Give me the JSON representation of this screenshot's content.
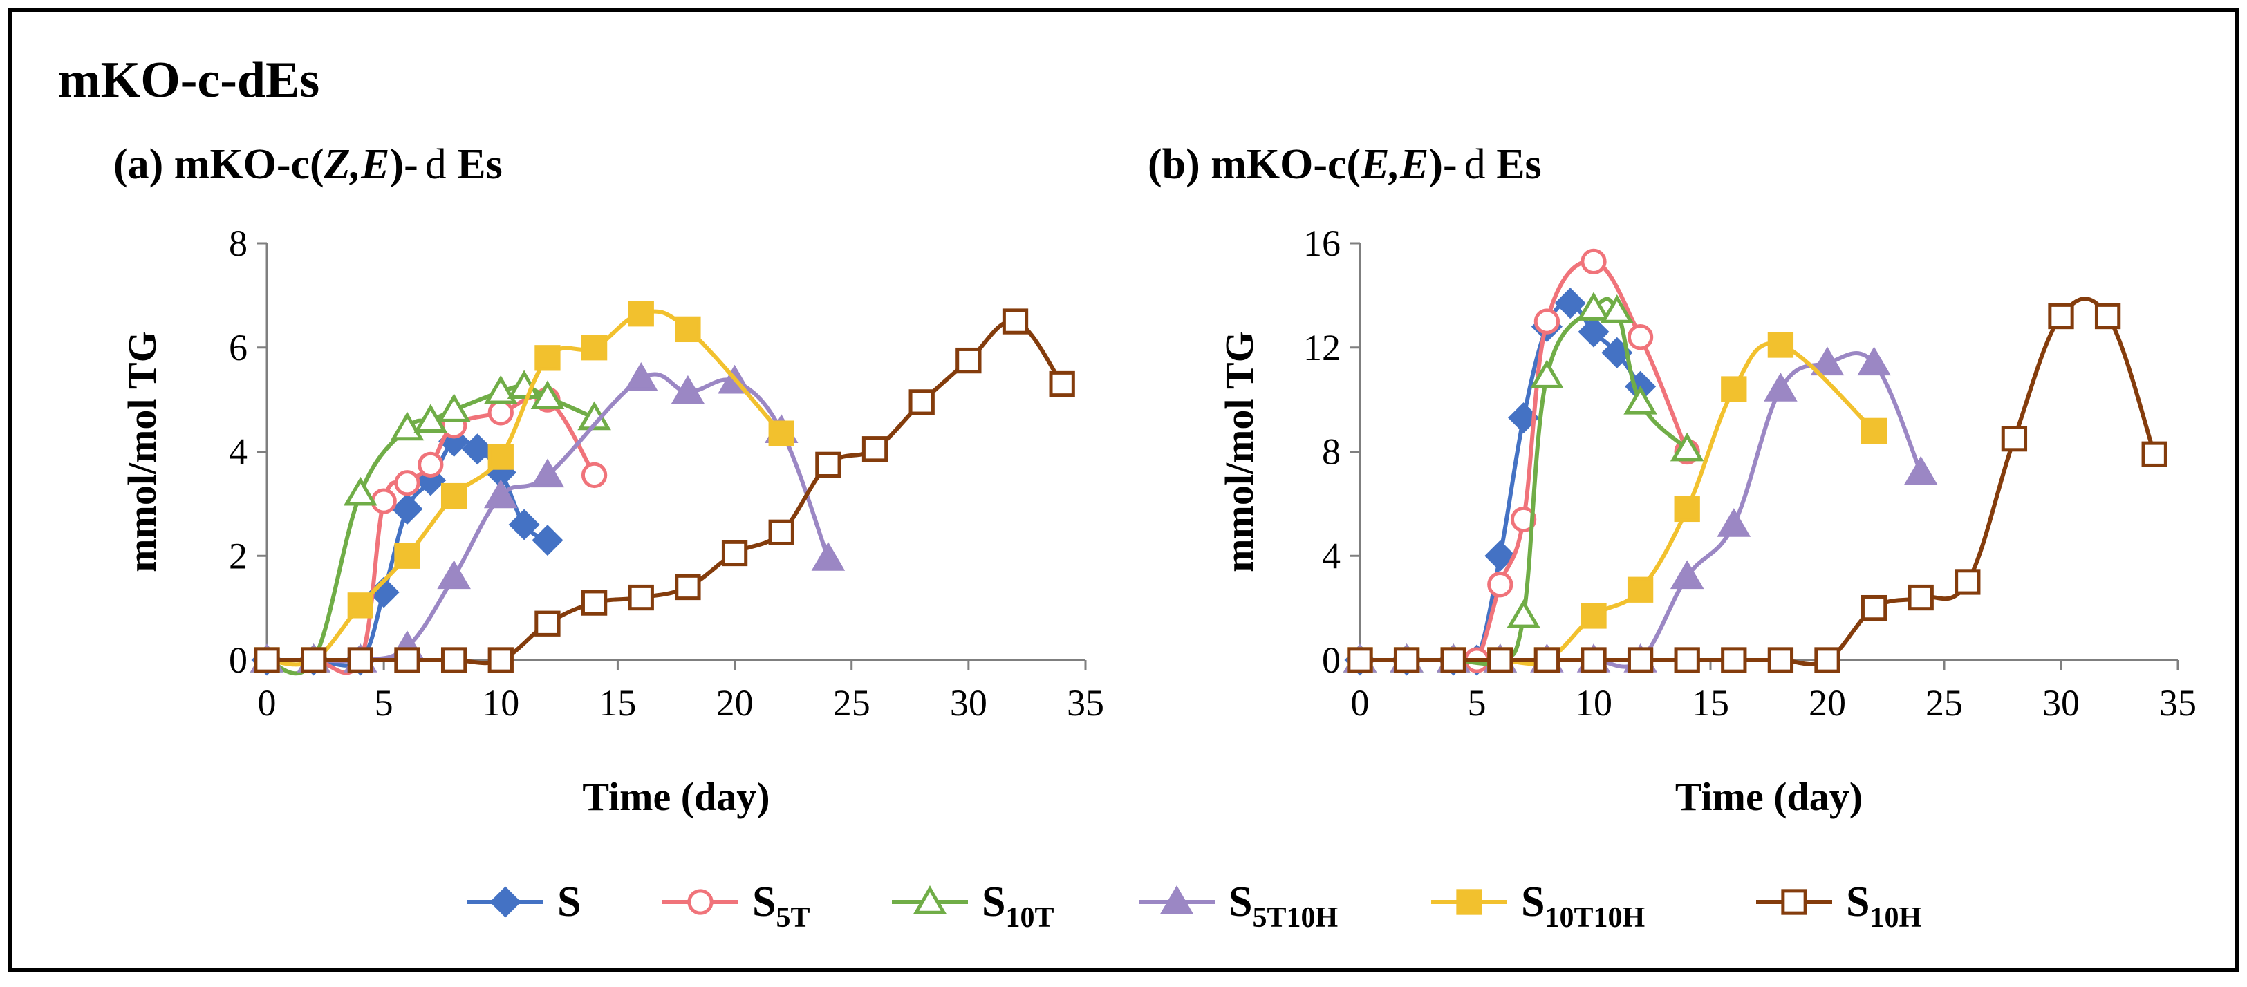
{
  "title": "mKO-c-dEs",
  "legend": [
    {
      "key": "S",
      "base": "S",
      "sub": "",
      "color": "#4472c4",
      "marker": "diamond",
      "filled": true
    },
    {
      "key": "S5T",
      "base": "S",
      "sub": "5T",
      "color": "#f0737a",
      "marker": "circle",
      "filled": false
    },
    {
      "key": "S10T",
      "base": "S",
      "sub": "10T",
      "color": "#70ad47",
      "marker": "triangle",
      "filled": false
    },
    {
      "key": "S5T10H",
      "base": "S",
      "sub": "5T10H",
      "color": "#9b87c4",
      "marker": "triangle",
      "filled": true
    },
    {
      "key": "S10T10H",
      "base": "S",
      "sub": "10T10H",
      "color": "#f2c12e",
      "marker": "square",
      "filled": true
    },
    {
      "key": "S10H",
      "base": "S",
      "sub": "10H",
      "color": "#843c0c",
      "marker": "square",
      "filled": false
    }
  ],
  "chart_data": [
    {
      "type": "line",
      "title_prefix": "(a) mKO-c(",
      "title_z": "Z,E",
      "title_suffix": ")-",
      "title_d": "d",
      "title_end": " Es",
      "xlabel": "Time (day)",
      "ylabel": "mmol/mol TG",
      "xlim": [
        0,
        35
      ],
      "ylim": [
        0,
        8
      ],
      "xticks": [
        "0",
        "5",
        "10",
        "15",
        "20",
        "25",
        "30",
        "35"
      ],
      "yticks": [
        "0",
        "2",
        "4",
        "6",
        "8"
      ],
      "series": [
        {
          "key": "S",
          "x": [
            0,
            2,
            4,
            5,
            6,
            7,
            8,
            9,
            10,
            11,
            12
          ],
          "y": [
            0,
            0,
            0,
            1.3,
            2.9,
            3.45,
            4.2,
            4.05,
            3.6,
            2.6,
            2.3
          ]
        },
        {
          "key": "S5T",
          "x": [
            0,
            2,
            4,
            5,
            6,
            7,
            8,
            10,
            12,
            14
          ],
          "y": [
            0,
            0,
            0,
            3.05,
            3.4,
            3.75,
            4.5,
            4.75,
            5.0,
            3.55
          ]
        },
        {
          "key": "S10T",
          "x": [
            0,
            2,
            4,
            6,
            7,
            8,
            10,
            11,
            12,
            14
          ],
          "y": [
            0,
            0,
            3.2,
            4.45,
            4.6,
            4.8,
            5.15,
            5.25,
            5.05,
            4.65
          ]
        },
        {
          "key": "S5T10H",
          "x": [
            0,
            2,
            4,
            6,
            8,
            10,
            12,
            16,
            18,
            20,
            22,
            24
          ],
          "y": [
            0,
            0,
            0,
            0.25,
            1.6,
            3.15,
            3.55,
            5.4,
            5.15,
            5.35,
            4.4,
            1.95
          ]
        },
        {
          "key": "S10T10H",
          "x": [
            0,
            2,
            4,
            6,
            8,
            10,
            12,
            14,
            16,
            18,
            22
          ],
          "y": [
            0,
            0,
            1.05,
            2.0,
            3.15,
            3.9,
            5.8,
            6.0,
            6.65,
            6.35,
            4.35
          ]
        },
        {
          "key": "S10H",
          "x": [
            0,
            2,
            4,
            6,
            8,
            10,
            12,
            14,
            16,
            18,
            20,
            22,
            24,
            26,
            28,
            30,
            32,
            34
          ],
          "y": [
            0,
            0,
            0,
            0,
            0,
            0,
            0.7,
            1.1,
            1.2,
            1.4,
            2.05,
            2.45,
            3.75,
            4.05,
            4.95,
            5.75,
            6.5,
            5.3
          ]
        }
      ]
    },
    {
      "type": "line",
      "title_prefix": "(b) mKO-c(",
      "title_z": "E,E",
      "title_suffix": ")-",
      "title_d": "d",
      "title_end": " Es",
      "xlabel": "Time (day)",
      "ylabel": "mmol/mol TG",
      "xlim": [
        0,
        35
      ],
      "ylim": [
        0,
        16
      ],
      "xticks": [
        "0",
        "5",
        "10",
        "15",
        "20",
        "25",
        "30",
        "35"
      ],
      "yticks": [
        "0",
        "4",
        "8",
        "12",
        "16"
      ],
      "series": [
        {
          "key": "S",
          "x": [
            0,
            2,
            4,
            5,
            6,
            7,
            8,
            9,
            10,
            11,
            12
          ],
          "y": [
            0,
            0,
            0,
            0,
            4.0,
            9.3,
            12.8,
            13.7,
            12.6,
            11.8,
            10.5
          ]
        },
        {
          "key": "S5T",
          "x": [
            0,
            2,
            4,
            5,
            6,
            7,
            8,
            10,
            12,
            14
          ],
          "y": [
            0,
            0,
            0,
            0,
            2.9,
            5.4,
            13.0,
            15.3,
            12.4,
            8.0
          ]
        },
        {
          "key": "S10T",
          "x": [
            0,
            2,
            4,
            6,
            7,
            8,
            10,
            11,
            12,
            14
          ],
          "y": [
            0,
            0,
            0,
            0,
            1.7,
            10.9,
            13.5,
            13.4,
            9.9,
            8.1
          ]
        },
        {
          "key": "S5T10H",
          "x": [
            0,
            2,
            4,
            6,
            8,
            10,
            12,
            14,
            16,
            18,
            20,
            22,
            24
          ],
          "y": [
            0,
            0,
            0,
            0,
            0,
            0,
            0,
            3.2,
            5.2,
            10.4,
            11.4,
            11.4,
            7.2
          ]
        },
        {
          "key": "S10T10H",
          "x": [
            0,
            2,
            4,
            6,
            8,
            10,
            12,
            14,
            16,
            18,
            22
          ],
          "y": [
            0,
            0,
            0,
            0,
            0,
            1.7,
            2.7,
            5.8,
            10.4,
            12.1,
            8.8
          ]
        },
        {
          "key": "S10H",
          "x": [
            0,
            2,
            4,
            6,
            8,
            10,
            12,
            14,
            16,
            18,
            20,
            22,
            24,
            26,
            28,
            30,
            32,
            34
          ],
          "y": [
            0,
            0,
            0,
            0,
            0,
            0,
            0,
            0,
            0,
            0,
            0,
            2.0,
            2.4,
            3.0,
            8.5,
            13.2,
            13.2,
            7.9
          ]
        }
      ]
    }
  ]
}
